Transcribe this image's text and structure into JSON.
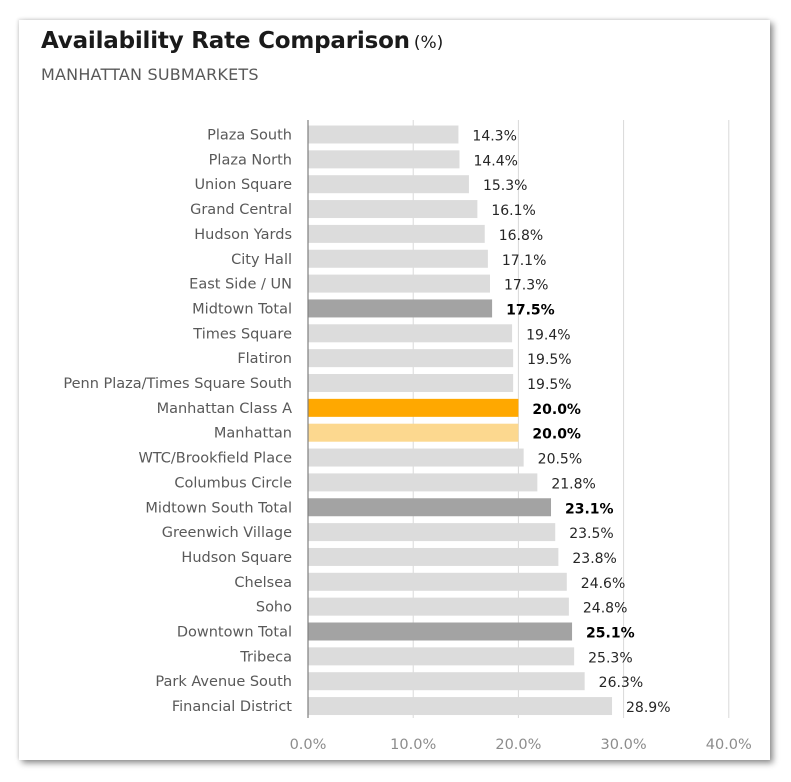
{
  "header": {
    "title": "Availability Rate Comparison",
    "unit": "(%)",
    "subtitle": "MANHATTAN SUBMARKETS"
  },
  "chart_data": {
    "type": "bar",
    "orientation": "horizontal",
    "title": "Availability Rate Comparison (%)",
    "subtitle": "MANHATTAN SUBMARKETS",
    "xlim": [
      0,
      40
    ],
    "x_ticks": [
      0,
      10,
      20,
      30,
      40
    ],
    "x_tick_labels": [
      "0.0%",
      "10.0%",
      "20.0%",
      "30.0%",
      "40.0%"
    ],
    "grid": "vertical",
    "categories": [
      "Plaza South",
      "Plaza North",
      "Union Square",
      "Grand Central",
      "Hudson Yards",
      "City Hall",
      "East Side / UN",
      "Midtown Total",
      "Times Square",
      "Flatiron",
      "Penn Plaza/Times Square South",
      "Manhattan Class A",
      "Manhattan ",
      "WTC/Brookfield Place",
      "Columbus Circle",
      "Midtown South Total",
      "Greenwich Village",
      "Hudson Square",
      "Chelsea",
      "Soho",
      "Downtown Total",
      "Tribeca",
      "Park Avenue South",
      "Financial District"
    ],
    "values": [
      14.3,
      14.4,
      15.3,
      16.1,
      16.8,
      17.1,
      17.3,
      17.5,
      19.4,
      19.5,
      19.5,
      20.0,
      20.0,
      20.5,
      21.8,
      23.1,
      23.5,
      23.8,
      24.6,
      24.8,
      25.1,
      25.3,
      26.3,
      28.9
    ],
    "value_labels": [
      "14.3%",
      "14.4%",
      "15.3%",
      "16.1%",
      "16.8%",
      "17.1%",
      "17.3%",
      "17.5%",
      "19.4%",
      "19.5%",
      "19.5%",
      "20.0%",
      "20.0%",
      "20.5%",
      "21.8%",
      "23.1%",
      "23.5%",
      "23.8%",
      "24.6%",
      "24.8%",
      "25.1%",
      "25.3%",
      "26.3%",
      "28.9%"
    ],
    "bar_styles": [
      "normal",
      "normal",
      "normal",
      "normal",
      "normal",
      "normal",
      "normal",
      "total",
      "normal",
      "normal",
      "normal",
      "class_a",
      "manhattan",
      "normal",
      "normal",
      "total",
      "normal",
      "normal",
      "normal",
      "normal",
      "total",
      "normal",
      "normal",
      "normal"
    ],
    "bold_labels": [
      false,
      false,
      false,
      false,
      false,
      false,
      false,
      true,
      false,
      false,
      false,
      true,
      true,
      false,
      false,
      true,
      false,
      false,
      false,
      false,
      true,
      false,
      false,
      false
    ],
    "colors": {
      "normal": "#dcdcdc",
      "total": "#a3a3a3",
      "class_a": "#ffa800",
      "manhattan": "#fcd88f",
      "grid": "#d9d9d9",
      "axis": "#7f7f7f"
    }
  }
}
